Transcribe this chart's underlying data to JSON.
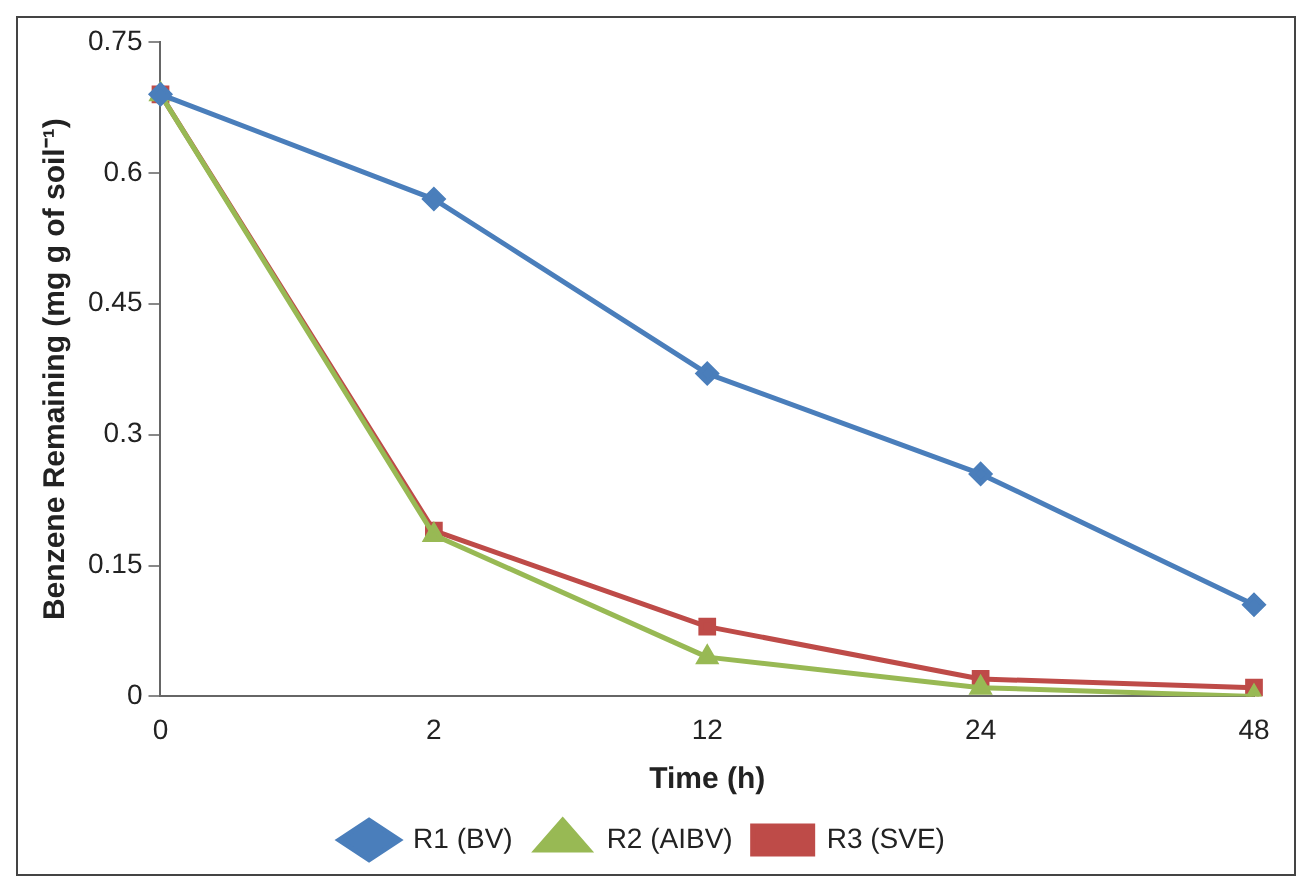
{
  "chart_data": {
    "type": "line",
    "xlabel": "Time (h)",
    "ylabel": "Benzene Remaining (mg g of soil⁻¹)",
    "categories": [
      "0",
      "2",
      "12",
      "24",
      "48"
    ],
    "series": [
      {
        "name": "R1 (BV)",
        "color": "#4a7ebb",
        "marker": "diamond",
        "values": [
          0.69,
          0.57,
          0.37,
          0.255,
          0.105
        ]
      },
      {
        "name": "R2 (AIBV)",
        "color": "#98b954",
        "marker": "triangle",
        "values": [
          0.69,
          0.185,
          0.045,
          0.01,
          0.0
        ]
      },
      {
        "name": "R3 (SVE)",
        "color": "#be4b48",
        "marker": "square",
        "values": [
          0.69,
          0.19,
          0.08,
          0.02,
          0.01
        ]
      }
    ],
    "ylim": [
      0,
      0.75
    ],
    "yticks": [
      0,
      0.15,
      0.3,
      0.45,
      0.6,
      0.75
    ],
    "grid": false,
    "legend": "bottom"
  }
}
